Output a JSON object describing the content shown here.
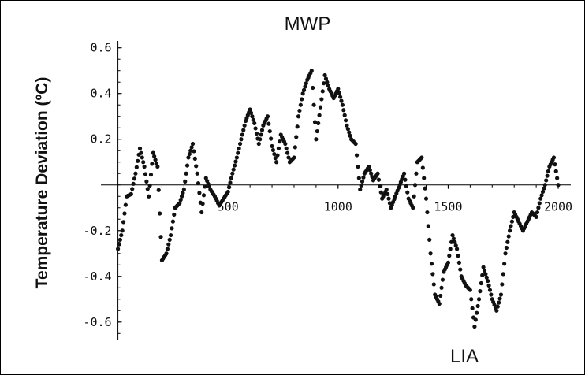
{
  "chart_data": {
    "type": "scatter",
    "ylabel": "Temperature Deviation (ºC)",
    "xlabel": "",
    "xlim": [
      -20,
      2050
    ],
    "ylim": [
      -0.68,
      0.63
    ],
    "x_ticks": [
      500,
      1000,
      1500,
      2000
    ],
    "x_tick_labels": [
      "500",
      "1000",
      "1500",
      "2000"
    ],
    "y_ticks": [
      0.6,
      0.4,
      0.2,
      -0.2,
      -0.4,
      -0.6
    ],
    "y_tick_labels": [
      "0.6",
      "0.4",
      "0.2",
      "-0.2",
      "-0.4",
      "-0.6"
    ],
    "annotations": [
      {
        "text": "MWP",
        "x": 840,
        "y": 0.6
      },
      {
        "text": "LIA",
        "x": 1620,
        "y": -0.68
      }
    ],
    "marker_color": "#111111",
    "x": [
      0,
      20,
      40,
      60,
      80,
      100,
      120,
      140,
      160,
      180,
      200,
      220,
      240,
      260,
      280,
      300,
      320,
      340,
      360,
      380,
      400,
      420,
      440,
      460,
      480,
      500,
      520,
      540,
      560,
      580,
      600,
      620,
      640,
      660,
      680,
      700,
      720,
      740,
      760,
      780,
      800,
      820,
      840,
      860,
      880,
      900,
      920,
      940,
      960,
      980,
      1000,
      1020,
      1040,
      1060,
      1080,
      1100,
      1120,
      1140,
      1160,
      1180,
      1200,
      1220,
      1240,
      1260,
      1280,
      1300,
      1320,
      1340,
      1360,
      1380,
      1400,
      1420,
      1440,
      1460,
      1480,
      1500,
      1520,
      1540,
      1560,
      1580,
      1600,
      1620,
      1640,
      1660,
      1680,
      1700,
      1720,
      1740,
      1760,
      1780,
      1800,
      1820,
      1840,
      1860,
      1880,
      1900,
      1920,
      1940,
      1960,
      1980,
      2000
    ],
    "y": [
      -0.28,
      -0.2,
      -0.05,
      -0.04,
      0.05,
      0.16,
      0.08,
      -0.05,
      0.14,
      0.08,
      -0.33,
      -0.3,
      -0.22,
      -0.1,
      -0.08,
      -0.02,
      0.12,
      0.18,
      0.05,
      -0.12,
      0.03,
      -0.02,
      -0.05,
      -0.09,
      -0.06,
      -0.03,
      0.05,
      0.12,
      0.2,
      0.28,
      0.33,
      0.27,
      0.18,
      0.26,
      0.3,
      0.17,
      0.1,
      0.22,
      0.18,
      0.1,
      0.12,
      0.3,
      0.4,
      0.46,
      0.5,
      0.2,
      0.34,
      0.48,
      0.42,
      0.38,
      0.42,
      0.35,
      0.26,
      0.2,
      0.18,
      -0.02,
      0.05,
      0.08,
      0.02,
      0.05,
      -0.06,
      -0.02,
      -0.1,
      -0.05,
      0.0,
      0.05,
      -0.06,
      -0.1,
      0.1,
      0.12,
      -0.06,
      -0.3,
      -0.48,
      -0.52,
      -0.38,
      -0.34,
      -0.22,
      -0.28,
      -0.4,
      -0.44,
      -0.46,
      -0.62,
      -0.5,
      -0.36,
      -0.42,
      -0.5,
      -0.55,
      -0.48,
      -0.3,
      -0.2,
      -0.12,
      -0.16,
      -0.2,
      -0.16,
      -0.12,
      -0.14,
      -0.06,
      0.0,
      0.08,
      0.12,
      0.0
    ]
  }
}
